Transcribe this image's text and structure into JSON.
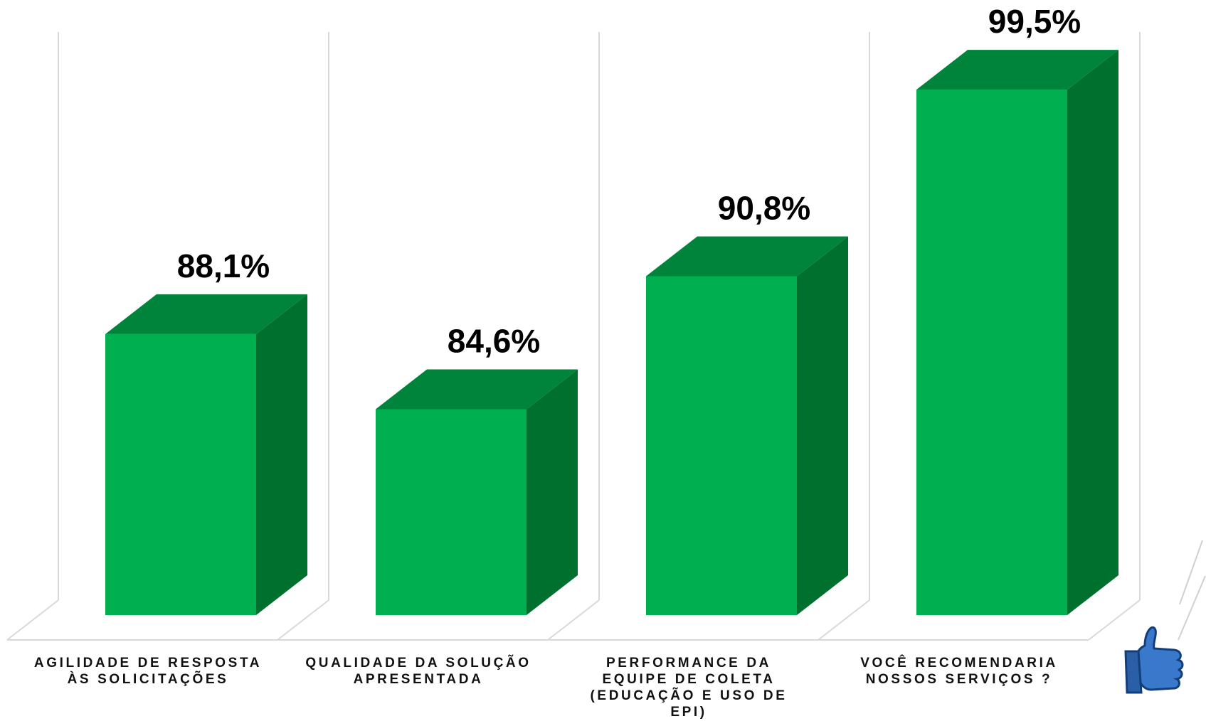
{
  "chart_data": {
    "type": "bar",
    "title": "",
    "xlabel": "",
    "ylabel": "",
    "categories": [
      [
        "AGILIDADE DE RESPOSTA",
        "ÀS SOLICITAÇÕES"
      ],
      [
        "QUALIDADE DA SOLUÇÃO",
        "APRESENTADA"
      ],
      [
        "PERFORMANCE DA",
        "EQUIPE DE COLETA",
        "(EDUCAÇÃO E USO DE",
        "EPI)"
      ],
      [
        "VOCÊ RECOMENDARIA",
        "NOSSOS SERVIÇOS ?"
      ]
    ],
    "values": [
      88.1,
      84.6,
      90.8,
      99.5
    ],
    "value_labels": [
      "88,1%",
      "84,6%",
      "90,8%",
      "99,5%"
    ],
    "ylim": [
      75,
      100
    ],
    "grid": true,
    "style": "3d-column",
    "colors": {
      "front": "#00b050",
      "top": "#00843c",
      "side": "#00702f",
      "grid": "#d9d9d9"
    }
  },
  "decoration": {
    "icon": "thumbs-up-icon",
    "icon_color": "#2e6fc4"
  }
}
